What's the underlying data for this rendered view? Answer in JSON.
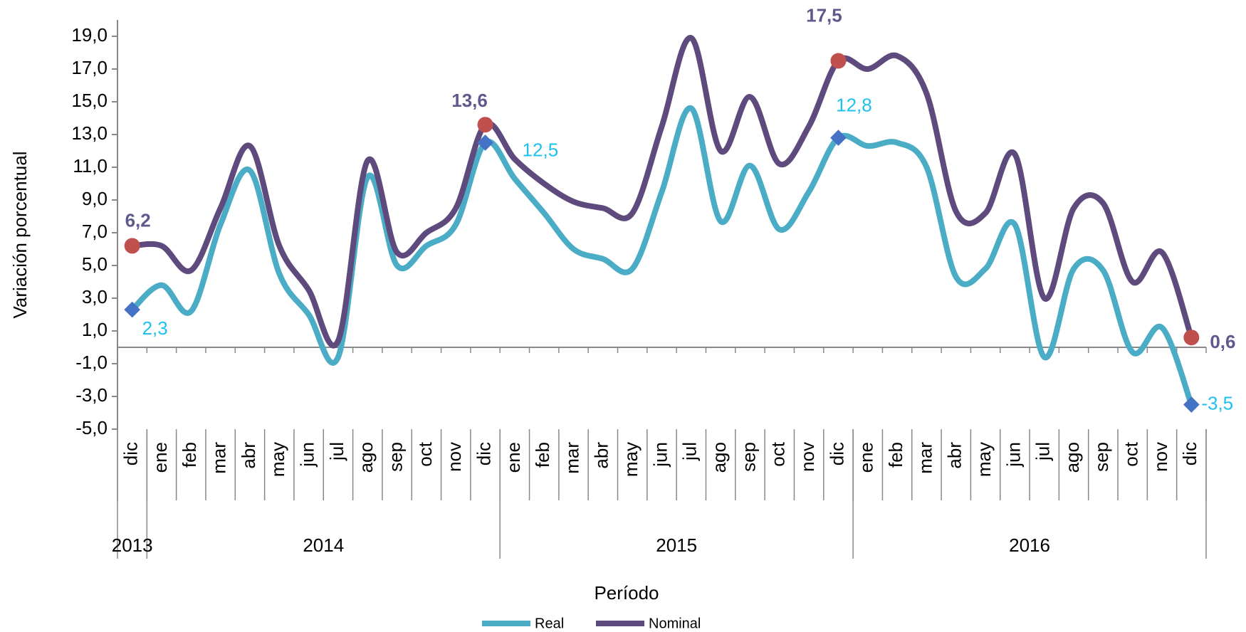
{
  "chart_data": {
    "type": "line",
    "y_axis_label": "Variación porcentual",
    "x_axis_label": "Período",
    "categories": [
      "dic",
      "ene",
      "feb",
      "mar",
      "abr",
      "may",
      "jun",
      "jul",
      "ago",
      "sep",
      "oct",
      "nov",
      "dic",
      "ene",
      "feb",
      "mar",
      "abr",
      "may",
      "jun",
      "jul",
      "ago",
      "sep",
      "oct",
      "nov",
      "dic",
      "ene",
      "feb",
      "mar",
      "abr",
      "may",
      "jun",
      "jul",
      "ago",
      "sep",
      "oct",
      "nov",
      "dic"
    ],
    "groups": [
      {
        "label": "2013",
        "count": 1
      },
      {
        "label": "2014",
        "count": 12
      },
      {
        "label": "2015",
        "count": 12
      },
      {
        "label": "2016",
        "count": 12
      }
    ],
    "series": [
      {
        "name": "Real",
        "color": "#4bacc6",
        "marker_color": "#4472c4",
        "label_color": "#1fc1ee",
        "values": [
          2.3,
          3.8,
          2.2,
          7.5,
          10.8,
          4.5,
          2.0,
          -0.6,
          10.4,
          5.0,
          6.2,
          7.5,
          12.5,
          10.3,
          8.2,
          6.0,
          5.4,
          4.8,
          9.5,
          14.6,
          7.7,
          11.1,
          7.2,
          9.5,
          12.8,
          12.3,
          12.5,
          11.0,
          4.3,
          4.8,
          7.5,
          -0.6,
          4.8,
          4.7,
          -0.3,
          1.2,
          -3.5
        ],
        "value_labels": [
          "2,3",
          null,
          null,
          null,
          null,
          null,
          null,
          null,
          null,
          null,
          null,
          null,
          "12,5",
          null,
          null,
          null,
          null,
          null,
          null,
          null,
          null,
          null,
          null,
          null,
          "12,8",
          null,
          null,
          null,
          null,
          null,
          null,
          null,
          null,
          null,
          null,
          null,
          "-3,5"
        ]
      },
      {
        "name": "Nominal",
        "color": "#5f4a7e",
        "marker_color": "#c0504d",
        "label_color": "#5f5a8e",
        "values": [
          6.2,
          6.2,
          4.7,
          8.5,
          12.3,
          6.2,
          3.5,
          0.4,
          11.4,
          5.8,
          7.0,
          8.5,
          13.6,
          11.5,
          10.0,
          8.9,
          8.5,
          8.2,
          13.5,
          18.9,
          12.0,
          15.3,
          11.2,
          13.5,
          17.5,
          17.0,
          17.8,
          15.5,
          8.3,
          8.2,
          11.8,
          3.0,
          8.5,
          8.8,
          4.0,
          5.8,
          0.6
        ],
        "value_labels": [
          "6,2",
          null,
          null,
          null,
          null,
          null,
          null,
          null,
          null,
          null,
          null,
          null,
          "13,6",
          null,
          null,
          null,
          null,
          null,
          null,
          null,
          null,
          null,
          null,
          null,
          "17,5",
          null,
          null,
          null,
          null,
          null,
          null,
          null,
          null,
          null,
          null,
          null,
          "0,6"
        ]
      }
    ],
    "ylim": [
      -5,
      20
    ],
    "yticks": [
      {
        "value": -5,
        "label": "-5,0"
      },
      {
        "value": -3,
        "label": "-3,0"
      },
      {
        "value": -1,
        "label": "-1,0"
      },
      {
        "value": 1,
        "label": "1,0"
      },
      {
        "value": 3,
        "label": "3,0"
      },
      {
        "value": 5,
        "label": "5,0"
      },
      {
        "value": 7,
        "label": "7,0"
      },
      {
        "value": 9,
        "label": "9,0"
      },
      {
        "value": 11,
        "label": "11,0"
      },
      {
        "value": 13,
        "label": "13,0"
      },
      {
        "value": 15,
        "label": "15,0"
      },
      {
        "value": 17,
        "label": "17,0"
      },
      {
        "value": 19,
        "label": "19,0"
      }
    ],
    "legend": "bottom"
  }
}
